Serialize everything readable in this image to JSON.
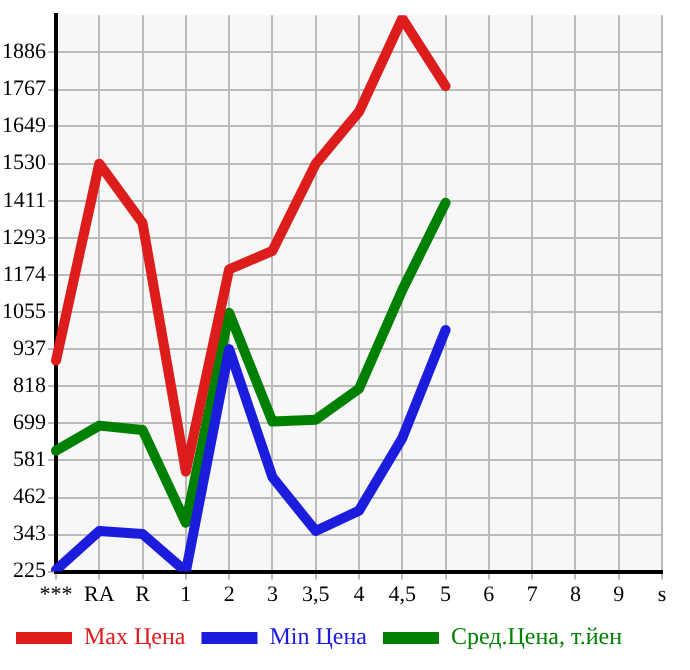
{
  "chart_data": {
    "type": "line",
    "categories": [
      "***",
      "RA",
      "R",
      "1",
      "2",
      "3",
      "3,5",
      "4",
      "4,5",
      "5",
      "6",
      "7",
      "8",
      "9",
      "s"
    ],
    "series": [
      {
        "name": "Max Цена",
        "color": "#dd1c1c",
        "values": [
          900,
          1530,
          1340,
          545,
          1192,
          1251,
          1530,
          1696,
          1995,
          1778,
          null,
          null,
          null,
          null,
          null
        ]
      },
      {
        "name": "Min Цена",
        "color": "#1c1cdd",
        "values": [
          230,
          355,
          345,
          225,
          937,
          527,
          355,
          420,
          652,
          998,
          null,
          null,
          null,
          null,
          null
        ]
      },
      {
        "name": "Сред.Цена, т.йен",
        "color": "#008000",
        "values": [
          612,
          692,
          678,
          381,
          1053,
          705,
          711,
          810,
          1126,
          1405,
          null,
          null,
          null,
          null,
          null
        ]
      }
    ],
    "ylim": [
      225,
      2005
    ],
    "yticks": [
      225,
      343,
      462,
      581,
      699,
      818,
      937,
      1055,
      1174,
      1293,
      1411,
      1530,
      1649,
      1767,
      1886
    ],
    "grid": true,
    "legend": "bottom",
    "marker": "none",
    "line_style": "solid"
  }
}
